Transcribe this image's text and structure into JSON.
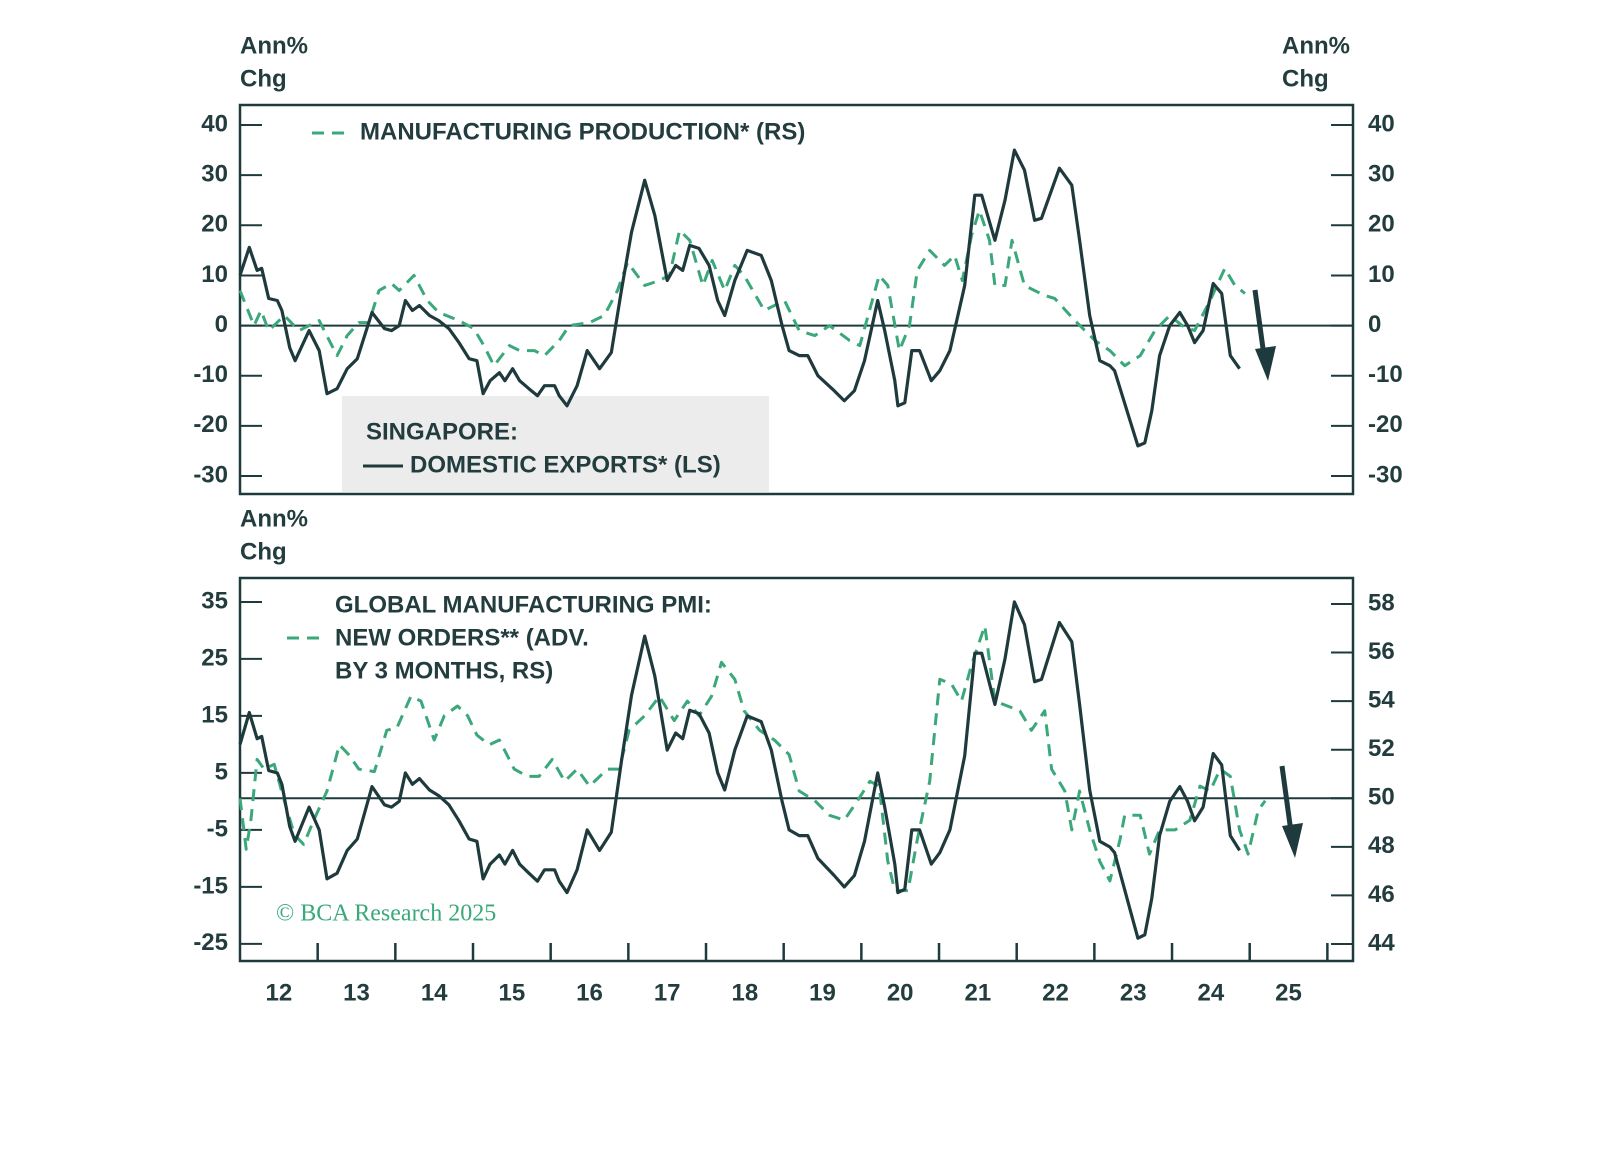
{
  "chart_data": [
    {
      "type": "line",
      "ylabel": [
        "Ann%",
        "Chg"
      ],
      "y2label": [
        "Ann%",
        "Chg"
      ],
      "legend_title": "SINGAPORE:",
      "xlim": [
        2012,
        2026.33
      ],
      "ylim": [
        -33.6,
        44
      ],
      "yticks": [
        -30,
        -20,
        -10,
        0,
        10,
        20,
        30,
        40
      ],
      "y2lim": [
        -33.6,
        44
      ],
      "y2ticks": [
        -30,
        -20,
        -10,
        0,
        10,
        20,
        30,
        40
      ],
      "hline": {
        "axis": "y",
        "value": 0
      },
      "grid": false,
      "series": [
        {
          "name": "MANUFACTURING PRODUCTION* (RS)",
          "color": "#3aa87a",
          "dashed": true,
          "axis": "y2",
          "x": [
            2012.0,
            2012.18,
            2012.27,
            2012.37,
            2012.57,
            2012.76,
            2013.02,
            2013.15,
            2013.25,
            2013.38,
            2013.53,
            2013.66,
            2013.79,
            2013.95,
            2014.05,
            2014.24,
            2014.41,
            2014.56,
            2014.82,
            2015.01,
            2015.14,
            2015.27,
            2015.47,
            2015.6,
            2015.79,
            2015.92,
            2016.11,
            2016.24,
            2016.5,
            2016.69,
            2016.86,
            2016.99,
            2017.21,
            2017.4,
            2017.53,
            2017.66,
            2017.79,
            2017.96,
            2018.08,
            2018.24,
            2018.37,
            2018.49,
            2018.75,
            2019.01,
            2019.2,
            2019.4,
            2019.59,
            2019.85,
            2019.98,
            2020.23,
            2020.34,
            2020.49,
            2020.62,
            2020.72,
            2020.88,
            2021.07,
            2021.2,
            2021.3,
            2021.42,
            2021.52,
            2021.65,
            2021.72,
            2021.85,
            2021.94,
            2022.1,
            2022.36,
            2022.49,
            2022.75,
            2023.01,
            2023.2,
            2023.39,
            2023.59,
            2023.78,
            2023.97,
            2024.13,
            2024.29,
            2024.49,
            2024.68,
            2024.81,
            2024.94
          ],
          "values": [
            7,
            0,
            3,
            -1,
            2,
            -1,
            1,
            -3,
            -6,
            -2,
            0.6,
            0.6,
            7,
            8.4,
            7,
            10,
            5,
            2.6,
            1,
            -0.6,
            -4,
            -8,
            -4,
            -5,
            -5,
            -6,
            -3,
            0,
            0.6,
            2,
            7,
            12.6,
            8,
            9,
            10,
            19,
            17,
            8,
            13,
            7,
            12,
            10,
            3,
            5,
            -1,
            -2,
            0,
            -3,
            -4,
            10,
            8,
            -5,
            0,
            11,
            15,
            12,
            14,
            9,
            18,
            23,
            17,
            8,
            8,
            17,
            8,
            6,
            5.4,
            1,
            -3,
            -5,
            -8,
            -6,
            -1,
            2,
            0,
            -1,
            5,
            11.4,
            8,
            6.4
          ]
        },
        {
          "name": "DOMESTIC EXPORTS* (LS)",
          "color": "#1f3a3d",
          "dashed": false,
          "axis": "y",
          "x": [
            2012.0,
            2012.12,
            2012.22,
            2012.28,
            2012.37,
            2012.48,
            2012.54,
            2012.64,
            2012.71,
            2012.89,
            2013.02,
            2013.12,
            2013.25,
            2013.38,
            2013.51,
            2013.7,
            2013.86,
            2013.95,
            2014.05,
            2014.13,
            2014.22,
            2014.31,
            2014.44,
            2014.56,
            2014.69,
            2014.82,
            2014.95,
            2015.05,
            2015.13,
            2015.22,
            2015.34,
            2015.41,
            2015.51,
            2015.6,
            2015.72,
            2015.83,
            2015.92,
            2016.05,
            2016.11,
            2016.21,
            2016.34,
            2016.47,
            2016.63,
            2016.78,
            2016.91,
            2017.04,
            2017.21,
            2017.34,
            2017.5,
            2017.61,
            2017.7,
            2017.79,
            2017.91,
            2018.04,
            2018.15,
            2018.24,
            2018.37,
            2018.53,
            2018.71,
            2018.84,
            2018.98,
            2019.07,
            2019.2,
            2019.31,
            2019.44,
            2019.65,
            2019.78,
            2019.91,
            2020.04,
            2020.21,
            2020.3,
            2020.43,
            2020.47,
            2020.56,
            2020.65,
            2020.75,
            2020.9,
            2021.01,
            2021.14,
            2021.33,
            2021.46,
            2021.55,
            2021.72,
            2021.85,
            2021.97,
            2022.1,
            2022.23,
            2022.32,
            2022.55,
            2022.71,
            2022.81,
            2022.94,
            2023.07,
            2023.2,
            2023.26,
            2023.46,
            2023.56,
            2023.65,
            2023.74,
            2023.84,
            2023.97,
            2024.1,
            2024.2,
            2024.29,
            2024.4,
            2024.53,
            2024.64,
            2024.75,
            2024.87
          ],
          "values": [
            10,
            15.6,
            11,
            11.4,
            5.4,
            5,
            3,
            -4.4,
            -7,
            -1,
            -5,
            -13.6,
            -12.6,
            -8.6,
            -6.6,
            2.6,
            -0.6,
            -1,
            0,
            5,
            3,
            4,
            2,
            1,
            -0.6,
            -3.4,
            -6.6,
            -7,
            -13.6,
            -11,
            -9.4,
            -11,
            -8.6,
            -11,
            -12.6,
            -14,
            -12,
            -12,
            -14,
            -16,
            -12,
            -5,
            -8.6,
            -5.4,
            7,
            18.6,
            29,
            22,
            9,
            12,
            11,
            16,
            15.4,
            12,
            5,
            2,
            9,
            15,
            14,
            9,
            0,
            -5,
            -6,
            -6,
            -10,
            -13,
            -15,
            -13,
            -7,
            5,
            -1,
            -11,
            -16,
            -15.4,
            -5,
            -5,
            -11,
            -9,
            -5,
            8,
            26,
            26,
            17,
            25,
            35,
            31,
            21,
            21.4,
            31.4,
            28,
            17,
            2,
            -7,
            -8,
            -9,
            -19,
            -24,
            -23.4,
            -17,
            -6,
            0,
            2.6,
            0,
            -3.4,
            -1,
            8.4,
            6.4,
            -6,
            -8.6
          ]
        }
      ]
    },
    {
      "type": "line",
      "ylabel": [
        "Ann%",
        "Chg"
      ],
      "annotation": "© BCA Research 2025",
      "xlim": [
        2012,
        2026.33
      ],
      "xticks": [
        {
          "value": 2012.5,
          "label": "12"
        },
        {
          "value": 2013.5,
          "label": "13"
        },
        {
          "value": 2014.5,
          "label": "14"
        },
        {
          "value": 2015.5,
          "label": "15"
        },
        {
          "value": 2016.5,
          "label": "16"
        },
        {
          "value": 2017.5,
          "label": "17"
        },
        {
          "value": 2018.5,
          "label": "18"
        },
        {
          "value": 2019.5,
          "label": "19"
        },
        {
          "value": 2020.5,
          "label": "20"
        },
        {
          "value": 2021.5,
          "label": "21"
        },
        {
          "value": 2022.5,
          "label": "22"
        },
        {
          "value": 2023.5,
          "label": "23"
        },
        {
          "value": 2024.5,
          "label": "24"
        },
        {
          "value": 2025.5,
          "label": "25"
        }
      ],
      "xminor": [
        2013,
        2014,
        2015,
        2016,
        2017,
        2018,
        2019,
        2020,
        2021,
        2022,
        2023,
        2024,
        2025,
        2026
      ],
      "ylim": [
        -28,
        39.2
      ],
      "yticks": [
        -25,
        -15,
        -5,
        5,
        15,
        25,
        35
      ],
      "y2lim": [
        43.3,
        59.07
      ],
      "y2ticks": [
        44,
        46,
        48,
        50,
        52,
        54,
        56,
        58
      ],
      "hline": {
        "axis": "y2",
        "value": 50
      },
      "grid": false,
      "series": [
        {
          "name": [
            "GLOBAL MANUFACTURING PMI:",
            "NEW ORDERS** (ADV.",
            "BY 3 MONTHS, RS)"
          ],
          "color": "#3aa87a",
          "dashed": true,
          "axis": "y2",
          "x": [
            2012.0,
            2012.08,
            2012.14,
            2012.22,
            2012.31,
            2012.44,
            2012.57,
            2012.7,
            2012.82,
            2012.95,
            2013.12,
            2013.28,
            2013.4,
            2013.53,
            2013.73,
            2013.89,
            2014.02,
            2014.2,
            2014.33,
            2014.5,
            2014.63,
            2014.8,
            2014.93,
            2015.05,
            2015.21,
            2015.34,
            2015.53,
            2015.7,
            2015.85,
            2016.02,
            2016.18,
            2016.34,
            2016.5,
            2016.73,
            2016.88,
            2017.01,
            2017.21,
            2017.4,
            2017.59,
            2017.76,
            2017.91,
            2018.07,
            2018.2,
            2018.37,
            2018.49,
            2018.69,
            2018.88,
            2019.07,
            2019.2,
            2019.4,
            2019.59,
            2019.78,
            2019.95,
            2020.11,
            2020.23,
            2020.34,
            2020.43,
            2020.6,
            2020.72,
            2020.88,
            2021.01,
            2021.16,
            2021.29,
            2021.42,
            2021.59,
            2021.72,
            2021.88,
            2022.04,
            2022.19,
            2022.36,
            2022.45,
            2022.62,
            2022.71,
            2022.81,
            2022.94,
            2023.07,
            2023.2,
            2023.33,
            2023.39,
            2023.59,
            2023.71,
            2023.84,
            2024.04,
            2024.23,
            2024.36,
            2024.49,
            2024.62,
            2024.75,
            2024.87,
            2024.98,
            2025.11,
            2025.2
          ],
          "values": [
            50,
            47.9,
            49.1,
            51.6,
            51.2,
            51.4,
            49.9,
            48.5,
            48.1,
            49.1,
            50.3,
            52.2,
            51.8,
            51.2,
            51.1,
            52.8,
            52.9,
            54.2,
            54.0,
            52.4,
            53.4,
            53.8,
            53.4,
            52.6,
            52.2,
            52.4,
            51.2,
            50.9,
            50.9,
            51.6,
            50.7,
            51.2,
            50.5,
            51.2,
            51.2,
            52.8,
            53.4,
            54.2,
            53.2,
            54.0,
            53.4,
            54.2,
            55.6,
            54.9,
            53.6,
            52.8,
            52.4,
            51.8,
            50.3,
            49.9,
            49.3,
            49.1,
            49.9,
            50.7,
            50.5,
            47.4,
            46.2,
            46.2,
            48.3,
            50.7,
            54.9,
            54.7,
            54.0,
            55.5,
            57.1,
            54.0,
            53.8,
            53.6,
            52.8,
            53.6,
            51.2,
            50.3,
            48.7,
            50.3,
            48.7,
            47.4,
            46.6,
            48.3,
            49.3,
            49.3,
            47.7,
            48.7,
            48.7,
            49.1,
            50.5,
            50.3,
            51.2,
            50.9,
            48.7,
            47.7,
            49.5,
            49.9
          ]
        },
        {
          "color": "#1f3a3d",
          "dashed": false,
          "axis": "y",
          "x": [
            2012.0,
            2012.12,
            2012.22,
            2012.28,
            2012.37,
            2012.48,
            2012.54,
            2012.64,
            2012.71,
            2012.89,
            2013.02,
            2013.12,
            2013.25,
            2013.38,
            2013.51,
            2013.7,
            2013.86,
            2013.95,
            2014.05,
            2014.13,
            2014.22,
            2014.31,
            2014.44,
            2014.56,
            2014.69,
            2014.82,
            2014.95,
            2015.05,
            2015.13,
            2015.22,
            2015.34,
            2015.41,
            2015.51,
            2015.6,
            2015.72,
            2015.83,
            2015.92,
            2016.05,
            2016.11,
            2016.21,
            2016.34,
            2016.47,
            2016.63,
            2016.78,
            2016.91,
            2017.04,
            2017.21,
            2017.34,
            2017.5,
            2017.61,
            2017.7,
            2017.79,
            2017.91,
            2018.04,
            2018.15,
            2018.24,
            2018.37,
            2018.53,
            2018.71,
            2018.84,
            2018.98,
            2019.07,
            2019.2,
            2019.31,
            2019.44,
            2019.65,
            2019.78,
            2019.91,
            2020.04,
            2020.21,
            2020.3,
            2020.43,
            2020.47,
            2020.56,
            2020.65,
            2020.75,
            2020.9,
            2021.01,
            2021.14,
            2021.33,
            2021.46,
            2021.55,
            2021.72,
            2021.85,
            2021.97,
            2022.1,
            2022.23,
            2022.32,
            2022.55,
            2022.71,
            2022.81,
            2022.94,
            2023.07,
            2023.2,
            2023.26,
            2023.46,
            2023.56,
            2023.65,
            2023.74,
            2023.84,
            2023.97,
            2024.1,
            2024.2,
            2024.29,
            2024.4,
            2024.53,
            2024.64,
            2024.75,
            2024.87
          ],
          "values": [
            10,
            15.6,
            11,
            11.4,
            5.4,
            5,
            3,
            -4.4,
            -7,
            -1,
            -5,
            -13.6,
            -12.6,
            -8.6,
            -6.6,
            2.6,
            -0.6,
            -1,
            0,
            5,
            3,
            4,
            2,
            1,
            -0.6,
            -3.4,
            -6.6,
            -7,
            -13.6,
            -11,
            -9.4,
            -11,
            -8.6,
            -11,
            -12.6,
            -14,
            -12,
            -12,
            -14,
            -16,
            -12,
            -5,
            -8.6,
            -5.4,
            7,
            18.6,
            29,
            22,
            9,
            12,
            11,
            16,
            15.4,
            12,
            5,
            2,
            9,
            15,
            14,
            9,
            0,
            -5,
            -6,
            -6,
            -10,
            -13,
            -15,
            -13,
            -7,
            5,
            -1,
            -11,
            -16,
            -15.4,
            -5,
            -5,
            -11,
            -9,
            -5,
            8,
            26,
            26,
            17,
            25,
            35,
            31,
            21,
            21.4,
            31.4,
            28,
            17,
            2,
            -7,
            -8,
            -9,
            -19,
            -24,
            -23.4,
            -17,
            -6,
            0,
            2.6,
            0,
            -3.4,
            -1,
            8.4,
            6.4,
            -6,
            -8.6
          ]
        }
      ]
    }
  ]
}
